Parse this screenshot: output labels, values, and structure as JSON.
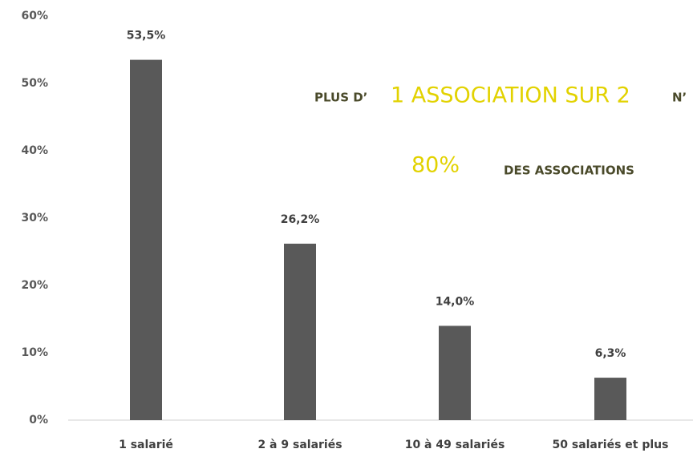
{
  "chart_data": {
    "type": "bar",
    "categories": [
      "1 salarié",
      "2 à 9 salariés",
      "10 à 49 salariés",
      "50 salariés et plus"
    ],
    "values": [
      53.5,
      26.2,
      14.0,
      6.3
    ],
    "value_labels": [
      "53,5%",
      "26,2%",
      "14,0%",
      "6,3%"
    ],
    "color": "#595959",
    "ylim": [
      0,
      60
    ],
    "yticks": [
      {
        "value": 0,
        "label": "0%"
      },
      {
        "value": 10,
        "label": "10%"
      },
      {
        "value": 20,
        "label": "20%"
      },
      {
        "value": 30,
        "label": "30%"
      },
      {
        "value": 40,
        "label": "40%"
      },
      {
        "value": 50,
        "label": "50%"
      },
      {
        "value": 60,
        "label": "60%"
      }
    ],
    "grid": false,
    "annotations": [
      "PLUS D’",
      "1 ASSOCIATION SUR 2",
      "N’",
      "80%",
      "DES ASSOCIATIONS"
    ]
  }
}
